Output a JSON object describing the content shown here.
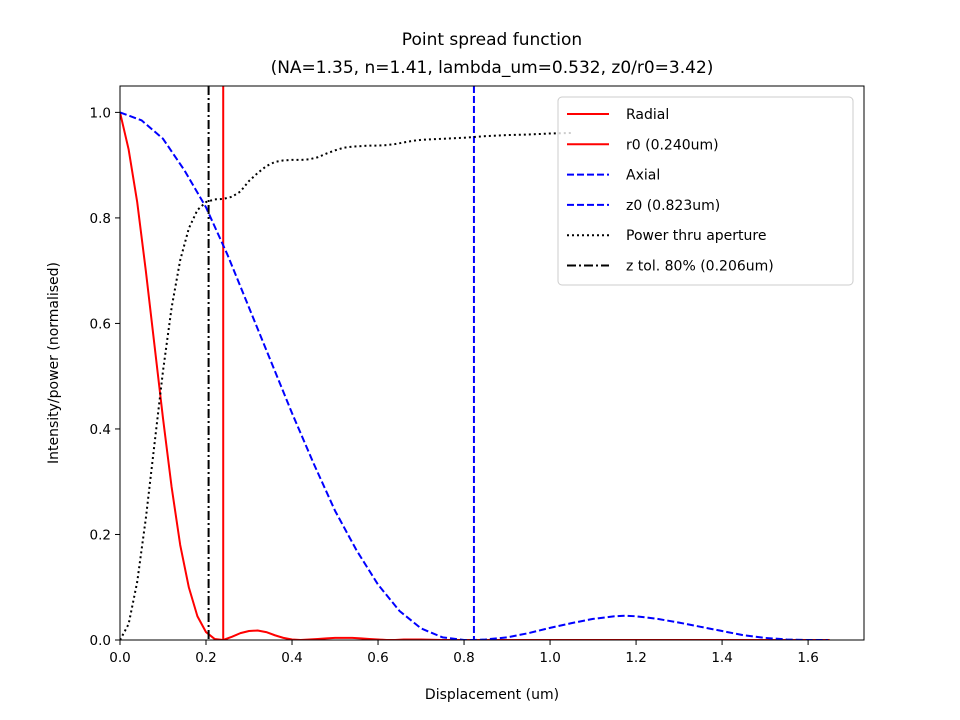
{
  "chart_data": {
    "type": "line",
    "title": "Point spread function",
    "subtitle": "(NA=1.35, n=1.41, lambda_um=0.532, z0/r0=3.42)",
    "xlabel": "Displacement (um)",
    "ylabel": "Intensity/power (normalised)",
    "xlim": [
      0.0,
      1.73
    ],
    "ylim": [
      0.0,
      1.05
    ],
    "xticks": [
      0.0,
      0.2,
      0.4,
      0.6,
      0.8,
      1.0,
      1.2,
      1.4,
      1.6
    ],
    "xtick_labels": [
      "0.0",
      "0.2",
      "0.4",
      "0.6",
      "0.8",
      "1.0",
      "1.2",
      "1.4",
      "1.6"
    ],
    "yticks": [
      0.0,
      0.2,
      0.4,
      0.6,
      0.8,
      1.0
    ],
    "ytick_labels": [
      "0.0",
      "0.2",
      "0.4",
      "0.6",
      "0.8",
      "1.0"
    ],
    "grid": false,
    "legend_position": "top-right",
    "series": [
      {
        "name": "Radial",
        "style": "solid",
        "color": "#ff0000",
        "x": [
          0.0,
          0.02,
          0.04,
          0.06,
          0.08,
          0.1,
          0.12,
          0.14,
          0.16,
          0.18,
          0.2,
          0.22,
          0.24,
          0.26,
          0.28,
          0.3,
          0.32,
          0.34,
          0.36,
          0.38,
          0.4,
          0.42,
          0.44,
          0.46,
          0.48,
          0.5,
          0.52,
          0.54,
          0.56,
          0.58,
          0.6,
          0.62,
          0.64,
          0.66,
          0.68,
          0.7,
          0.75,
          0.8,
          0.9,
          1.0,
          1.2,
          1.4,
          1.65
        ],
        "y": [
          1.0,
          0.93,
          0.83,
          0.7,
          0.56,
          0.42,
          0.29,
          0.18,
          0.1,
          0.045,
          0.015,
          0.002,
          0.0,
          0.006,
          0.013,
          0.017,
          0.018,
          0.015,
          0.009,
          0.004,
          0.001,
          0.0,
          0.001,
          0.002,
          0.003,
          0.004,
          0.004,
          0.004,
          0.003,
          0.002,
          0.001,
          0.0,
          0.0,
          0.001,
          0.001,
          0.001,
          0.0,
          0.0,
          0.0,
          0.0,
          0.0,
          0.0,
          0.0
        ]
      },
      {
        "name": "r0 (0.240um)",
        "style": "vline-solid",
        "color": "#ff0000",
        "x_value": 0.24
      },
      {
        "name": "Axial",
        "style": "dashed",
        "color": "#0000ff",
        "x": [
          0.0,
          0.05,
          0.1,
          0.15,
          0.2,
          0.25,
          0.3,
          0.35,
          0.4,
          0.45,
          0.5,
          0.55,
          0.6,
          0.65,
          0.7,
          0.75,
          0.8,
          0.823,
          0.85,
          0.9,
          0.95,
          1.0,
          1.05,
          1.1,
          1.15,
          1.175,
          1.2,
          1.25,
          1.3,
          1.35,
          1.4,
          1.45,
          1.5,
          1.55,
          1.6,
          1.646
        ],
        "y": [
          1.0,
          0.985,
          0.95,
          0.89,
          0.82,
          0.73,
          0.63,
          0.53,
          0.43,
          0.335,
          0.245,
          0.17,
          0.105,
          0.055,
          0.022,
          0.005,
          0.0,
          0.0,
          0.001,
          0.005,
          0.013,
          0.023,
          0.032,
          0.04,
          0.045,
          0.046,
          0.045,
          0.04,
          0.033,
          0.025,
          0.017,
          0.009,
          0.004,
          0.001,
          0.0,
          0.0
        ]
      },
      {
        "name": "z0 (0.823um)",
        "style": "vline-dashed",
        "color": "#0000ff",
        "x_value": 0.823
      },
      {
        "name": "Power thru aperture",
        "style": "dotted",
        "color": "#000000",
        "x": [
          0.0,
          0.02,
          0.04,
          0.06,
          0.08,
          0.1,
          0.12,
          0.14,
          0.16,
          0.18,
          0.2,
          0.22,
          0.24,
          0.26,
          0.28,
          0.3,
          0.32,
          0.34,
          0.36,
          0.38,
          0.4,
          0.42,
          0.44,
          0.46,
          0.48,
          0.5,
          0.52,
          0.54,
          0.56,
          0.58,
          0.6,
          0.62,
          0.64,
          0.66,
          0.68,
          0.7,
          0.75,
          0.8,
          0.85,
          0.9,
          0.95,
          1.0,
          1.05
        ],
        "y": [
          0.0,
          0.03,
          0.11,
          0.23,
          0.37,
          0.51,
          0.63,
          0.72,
          0.78,
          0.815,
          0.83,
          0.835,
          0.836,
          0.84,
          0.85,
          0.87,
          0.885,
          0.898,
          0.906,
          0.909,
          0.91,
          0.91,
          0.911,
          0.915,
          0.922,
          0.928,
          0.933,
          0.935,
          0.936,
          0.937,
          0.937,
          0.938,
          0.94,
          0.943,
          0.946,
          0.948,
          0.95,
          0.952,
          0.955,
          0.957,
          0.958,
          0.96,
          0.961
        ]
      },
      {
        "name": "z tol. 80% (0.206um)",
        "style": "vline-dashdot",
        "color": "#000000",
        "x_value": 0.206
      }
    ]
  }
}
